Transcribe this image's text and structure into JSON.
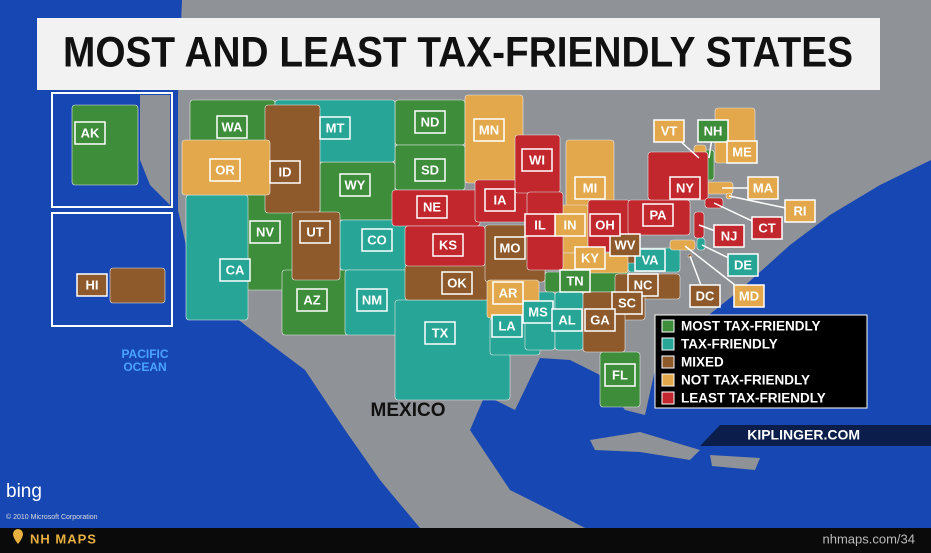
{
  "title": "MOST AND LEAST TAX-FRIENDLY STATES",
  "legend": [
    {
      "label": "MOST TAX-FRIENDLY",
      "color": "#3d8d3b",
      "states": [
        "AK",
        "WA",
        "ND",
        "SD",
        "WY",
        "NV",
        "AZ",
        "NH",
        "TN",
        "FL"
      ]
    },
    {
      "label": "TAX-FRIENDLY",
      "color": "#27a596",
      "states": [
        "MT",
        "CA",
        "CO",
        "NM",
        "TX",
        "LA",
        "MS",
        "AL",
        "VA",
        "DE"
      ]
    },
    {
      "label": "MIXED",
      "color": "#8e5a2c",
      "states": [
        "ID",
        "UT",
        "OK",
        "MO",
        "NC",
        "SC",
        "GA",
        "WV",
        "HI",
        "DC"
      ]
    },
    {
      "label": "NOT TAX-FRIENDLY",
      "color": "#e2a84b",
      "states": [
        "OR",
        "MN",
        "MI",
        "IN",
        "KY",
        "AR",
        "VT",
        "ME",
        "MA",
        "RI",
        "MD"
      ]
    },
    {
      "label": "LEAST TAX-FRIENDLY",
      "color": "#c1272d",
      "states": [
        "NE",
        "KS",
        "IA",
        "WI",
        "IL",
        "OH",
        "PA",
        "NY",
        "NJ",
        "CT"
      ]
    }
  ],
  "ocean_label": "PACIFIC OCEAN",
  "country_label": "MEXICO",
  "source": "KIPLINGER.COM",
  "map_provider": "bing",
  "copyright": "© 2010 Microsoft Corporation",
  "footer": {
    "brand": "NH MAPS",
    "url": "nhmaps.com/34"
  }
}
